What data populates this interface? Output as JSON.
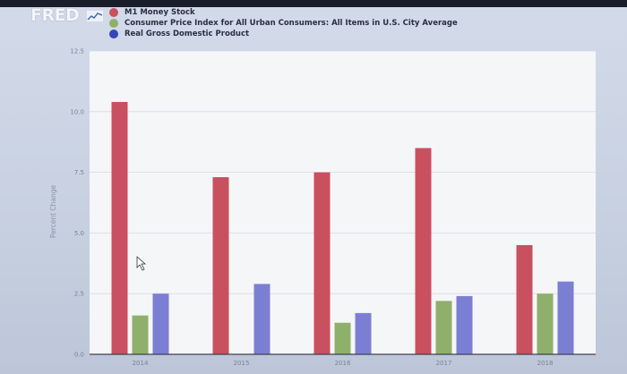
{
  "logo": {
    "text": "FRED"
  },
  "colors": {
    "series_1": "#c9505f",
    "series_2": "#8fb06a",
    "series_3": "#7b7fd4",
    "plot_bg": "#f5f6f8",
    "grid": "#d6dae4"
  },
  "chart_data": {
    "type": "bar",
    "categories": [
      "2014",
      "2015",
      "2016",
      "2017",
      "2018"
    ],
    "series": [
      {
        "name": "M1 Money Stock",
        "values": [
          10.4,
          7.3,
          7.5,
          8.5,
          4.5
        ]
      },
      {
        "name": "Consumer Price Index for All Urban Consumers: All Items in U.S. City Average",
        "values": [
          1.6,
          0.0,
          1.3,
          2.2,
          2.5
        ]
      },
      {
        "name": "Real Gross Domestic Product",
        "values": [
          2.5,
          2.9,
          1.7,
          2.4,
          3.0
        ]
      }
    ],
    "title": "",
    "xlabel": "",
    "ylabel": "Percent Change",
    "ylim": [
      0,
      12.5
    ],
    "yticks": [
      "0.0",
      "2.5",
      "5.0",
      "7.5",
      "10.0",
      "12.5"
    ],
    "grid": true,
    "legend": "top-left"
  }
}
